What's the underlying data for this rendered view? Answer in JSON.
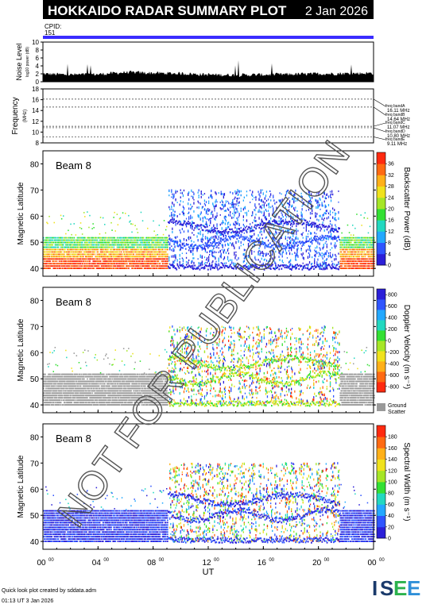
{
  "header": {
    "title": "HOKKAIDO RADAR SUMMARY PLOT",
    "date": "2 Jan 2026",
    "cpid_label": "CPID:",
    "cpid_value": "151"
  },
  "noise_panel": {
    "ylabel": "Noise Level",
    "yunit": "log10 power (dB)",
    "yticks": [
      "0",
      "2",
      "4",
      "6",
      "8",
      "10"
    ]
  },
  "freq_panel": {
    "ylabel": "Frequency",
    "yunit": "(MHz)",
    "yticks": [
      "8",
      "10",
      "12",
      "14",
      "16",
      "18"
    ],
    "bands": [
      {
        "label": "freq bandA",
        "value": "16.11 MHz"
      },
      {
        "label": "freq bandB",
        "value": "14.64 MHz"
      },
      {
        "label": "freq bandC",
        "value": "11.07 MHz"
      },
      {
        "label": "freq bandD",
        "value": "10.80 MHz"
      },
      {
        "label": "freq bandE",
        "value": "9.11 MHz"
      }
    ]
  },
  "panels": [
    {
      "beam_label": "Beam  8",
      "ylabel": "Magnetic Latitude",
      "yticks": [
        "40",
        "50",
        "60",
        "70",
        "80"
      ],
      "colorbar_label": "Backscatter Power (dB)",
      "colorbar_ticks": [
        "0",
        "4",
        "8",
        "12",
        "16",
        "20",
        "24",
        "28",
        "32",
        "36"
      ],
      "colors": [
        "#2b1fd8",
        "#2f55ff",
        "#23a8ff",
        "#22d8c0",
        "#33e033",
        "#a6e626",
        "#f0e21c",
        "#ffb018",
        "#ff6a12",
        "#ff2a10"
      ]
    },
    {
      "beam_label": "Beam  8",
      "ylabel": "Magnetic Latitude",
      "yticks": [
        "40",
        "50",
        "60",
        "70",
        "80"
      ],
      "colorbar_label": "Doppler Velocity (m s⁻¹)",
      "colorbar_ticks": [
        "-800",
        "-600",
        "-400",
        "-200",
        "0",
        "200",
        "400",
        "600",
        "800"
      ],
      "colors": [
        "#ff2a10",
        "#ff6a12",
        "#ffb018",
        "#f0e21c",
        "#a6e626",
        "#33e033",
        "#22d8c0",
        "#23a8ff",
        "#2f55ff",
        "#2b1fd8"
      ],
      "ground_label_1": "Ground",
      "ground_label_2": "Scatter",
      "ground_color": "#999999"
    },
    {
      "beam_label": "Beam  8",
      "ylabel": "Magnetic Latitude",
      "yticks": [
        "40",
        "50",
        "60",
        "70",
        "80"
      ],
      "colorbar_label": "Spectral Width (m s⁻¹)",
      "colorbar_ticks": [
        "0",
        "20",
        "40",
        "60",
        "80",
        "100",
        "120",
        "140",
        "160",
        "180"
      ],
      "colors": [
        "#2b1fd8",
        "#2f55ff",
        "#23a8ff",
        "#22d8c0",
        "#33e033",
        "#a6e626",
        "#f0e21c",
        "#ffb018",
        "#ff6a12",
        "#ff2a10"
      ]
    }
  ],
  "xaxis": {
    "label": "UT",
    "ticks": [
      "00",
      "04",
      "08",
      "12",
      "16",
      "20",
      "00"
    ],
    "tick_sup": "00"
  },
  "footer": {
    "line1": "Quick look plot created by sddata.adm",
    "line2": "01:13 UT  3 Jan 2026",
    "logo": "ISEE",
    "logo_colors": {
      "i": "#1a3a6b",
      "s": "#1a3a6b",
      "e1": "#2bb24c",
      "e2": "#2f8fd8"
    }
  },
  "watermark": "NOT FOR PUBLICATION",
  "chart_data": [
    {
      "type": "area",
      "title": "",
      "ylabel": "Noise Level",
      "ylim": [
        0,
        10
      ],
      "x": [
        0,
        2,
        4,
        6,
        8,
        10,
        12,
        14,
        16,
        18,
        20,
        22,
        24
      ],
      "values": [
        1.8,
        1.6,
        1.7,
        2.2,
        2.0,
        1.9,
        1.6,
        1.5,
        1.6,
        1.7,
        1.8,
        1.9,
        2.0
      ]
    },
    {
      "type": "line",
      "ylabel": "Frequency",
      "ylim": [
        8,
        18
      ],
      "series": [
        {
          "name": "freq bandA",
          "values": [
            16.11
          ]
        },
        {
          "name": "freq bandB",
          "values": [
            14.64
          ]
        },
        {
          "name": "freq bandC",
          "values": [
            11.07
          ]
        },
        {
          "name": "freq bandD",
          "values": [
            10.8
          ]
        },
        {
          "name": "freq bandE",
          "values": [
            9.11
          ]
        }
      ]
    },
    {
      "type": "heatmap",
      "ylabel": "Magnetic Latitude",
      "xlabel": "UT",
      "xlim": [
        0,
        24
      ],
      "ylim": [
        37,
        85
      ],
      "colorbar": "Backscatter Power (dB)",
      "clim": [
        0,
        38
      ]
    },
    {
      "type": "heatmap",
      "ylabel": "Magnetic Latitude",
      "xlabel": "UT",
      "xlim": [
        0,
        24
      ],
      "ylim": [
        37,
        85
      ],
      "colorbar": "Doppler Velocity (m s⁻¹)",
      "clim": [
        -900,
        900
      ]
    },
    {
      "type": "heatmap",
      "ylabel": "Magnetic Latitude",
      "xlabel": "UT",
      "xlim": [
        0,
        24
      ],
      "ylim": [
        37,
        85
      ],
      "colorbar": "Spectral Width (m s⁻¹)",
      "clim": [
        0,
        190
      ]
    }
  ]
}
